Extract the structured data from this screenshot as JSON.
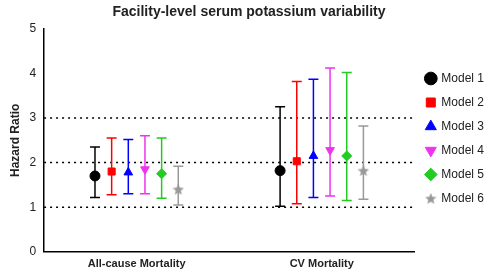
{
  "chart_data": {
    "type": "scatter",
    "title": "Facility-level serum potassium variability",
    "y_label": "Hazard Ratio",
    "categories": [
      "All-cause Mortality",
      "CV Mortality"
    ],
    "ylim": [
      0,
      5
    ],
    "yticks": [
      0,
      1,
      2,
      3,
      4,
      5
    ],
    "grid": false,
    "hlines": [
      1,
      2,
      3
    ],
    "legend": "right",
    "series": [
      {
        "name": "Model 1",
        "color": "#000000",
        "marker": "circle",
        "values": [
          1.7,
          1.82
        ],
        "ci_lower": [
          1.22,
          1.02
        ],
        "ci_upper": [
          2.35,
          3.25
        ]
      },
      {
        "name": "Model 2",
        "color": "#ff0000",
        "marker": "square",
        "values": [
          1.8,
          2.03
        ],
        "ci_lower": [
          1.28,
          1.08
        ],
        "ci_upper": [
          2.55,
          3.82
        ]
      },
      {
        "name": "Model 3",
        "color": "#0000ff",
        "marker": "triangle",
        "values": [
          1.78,
          2.15
        ],
        "ci_lower": [
          1.3,
          1.22
        ],
        "ci_upper": [
          2.52,
          3.87
        ]
      },
      {
        "name": "Model 4",
        "color": "#ee33ee",
        "marker": "triangle_down",
        "values": [
          1.85,
          2.28
        ],
        "ci_lower": [
          1.3,
          1.25
        ],
        "ci_upper": [
          2.6,
          4.12
        ]
      },
      {
        "name": "Model 5",
        "color": "#22cc22",
        "marker": "diamond",
        "values": [
          1.75,
          2.15
        ],
        "ci_lower": [
          1.2,
          1.15
        ],
        "ci_upper": [
          2.55,
          4.02
        ]
      },
      {
        "name": "Model 6",
        "color": "#999999",
        "marker": "star",
        "values": [
          1.4,
          1.82
        ],
        "ci_lower": [
          1.05,
          1.18
        ],
        "ci_upper": [
          1.92,
          2.82
        ]
      }
    ]
  }
}
